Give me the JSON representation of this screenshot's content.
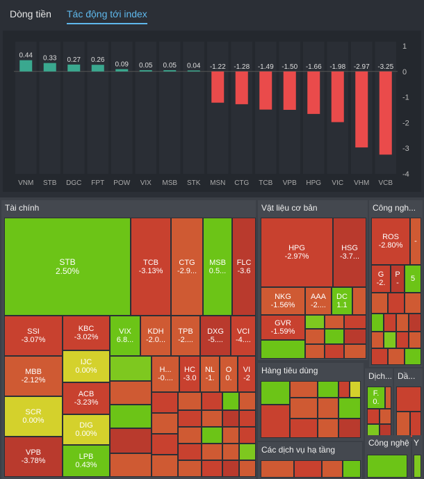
{
  "tabs": [
    {
      "label": "Dòng tiền"
    },
    {
      "label": "Tác động tới index"
    }
  ],
  "chart_data": {
    "type": "bar",
    "categories": [
      "VNM",
      "STB",
      "DGC",
      "FPT",
      "POW",
      "VIX",
      "MSB",
      "STK",
      "MSN",
      "CTG",
      "TCB",
      "VPB",
      "HPG",
      "VIC",
      "VHM",
      "VCB"
    ],
    "values": [
      0.44,
      0.33,
      0.27,
      0.26,
      0.09,
      0.05,
      0.05,
      0.04,
      -1.22,
      -1.28,
      -1.49,
      -1.5,
      -1.66,
      -1.98,
      -2.97,
      -3.25
    ],
    "labels": [
      "0.44",
      "0.33",
      "0.27",
      "0.26",
      "0.09",
      "0.05",
      "0.05",
      "0.04",
      "-1.22",
      "-1.28",
      "-1.49",
      "-1.50",
      "-1.66",
      "-1.98",
      "-2.97",
      "-3.25"
    ],
    "yticks": [
      1,
      0,
      -1,
      -2,
      -3,
      -4
    ],
    "ylim": [
      -4,
      1
    ],
    "colors": {
      "positive": "#3aa88f",
      "negative": "#ea4b4b"
    }
  },
  "sectors": {
    "finance": {
      "title": "Tài chính",
      "cells": [
        {
          "t": "STB",
          "v": "2.50%"
        },
        {
          "t": "TCB",
          "v": "-3.13%"
        },
        {
          "t": "CTG",
          "v": "-2.9..."
        },
        {
          "t": "MSB",
          "v": "0.5..."
        },
        {
          "t": "FLC",
          "v": "-3.6"
        },
        {
          "t": "SSI",
          "v": "-3.07%"
        },
        {
          "t": "KBC",
          "v": "-3.02%"
        },
        {
          "t": "VIX",
          "v": "6.8..."
        },
        {
          "t": "KDH",
          "v": "-2.0..."
        },
        {
          "t": "TPB",
          "v": "-2...."
        },
        {
          "t": "DXG",
          "v": "-5...."
        },
        {
          "t": "VCI",
          "v": "-4...."
        },
        {
          "t": "IJC",
          "v": "0.00%"
        },
        {
          "t": "MBB",
          "v": "-2.12%"
        },
        {
          "t": "ACB",
          "v": "-3.23%"
        },
        {
          "t": "SCR",
          "v": "0.00%"
        },
        {
          "t": "DIG",
          "v": "0.00%"
        },
        {
          "t": "VPB",
          "v": "-3.78%"
        },
        {
          "t": "LPB",
          "v": "0.43%"
        },
        {
          "t": "H...",
          "v": "-0...."
        },
        {
          "t": "HC",
          "v": "-3.0"
        },
        {
          "t": "NL",
          "v": "-1."
        },
        {
          "t": "O",
          "v": "0."
        },
        {
          "t": "VI",
          "v": "-2"
        }
      ]
    },
    "materials": {
      "title": "Vật liệu cơ bản",
      "cells": [
        {
          "t": "HPG",
          "v": "-2.97%"
        },
        {
          "t": "HSG",
          "v": "-3.7..."
        },
        {
          "t": "NKG",
          "v": "-1.56%"
        },
        {
          "t": "AAA",
          "v": "-2...."
        },
        {
          "t": "DC",
          "v": "1.1"
        },
        {
          "t": "GVR",
          "v": "-1.59%"
        }
      ]
    },
    "industrial": {
      "title": "Công ngh...",
      "cells": [
        {
          "t": "ROS",
          "v": "-2.80%"
        },
        {
          "t": "G",
          "v": "-2."
        },
        {
          "t": "P",
          "v": "-"
        },
        {
          "t": "5",
          "v": ""
        }
      ]
    },
    "consumer": {
      "title": "Hàng tiêu dùng"
    },
    "services": {
      "title": "Dịch...",
      "cells": [
        {
          "t": "F.",
          "v": "0."
        }
      ]
    },
    "energy": {
      "title": "Dầ..."
    },
    "infra": {
      "title": "Các dịch vụ hạ tầng"
    },
    "tech": {
      "title": "Công nghệ"
    },
    "health": {
      "title": "Y"
    }
  }
}
